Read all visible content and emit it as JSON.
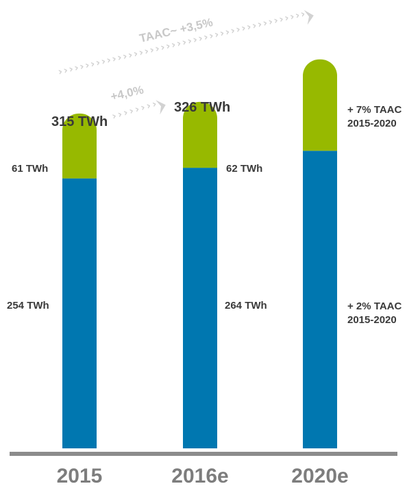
{
  "chart_data": {
    "type": "bar",
    "stacked": true,
    "categories": [
      "2015",
      "2016e",
      "2020e"
    ],
    "series": [
      {
        "values": [
          254,
          264,
          280
        ],
        "color": "#0077b0"
      },
      {
        "values": [
          61,
          62,
          86
        ],
        "color": "#97b900"
      }
    ],
    "segment_labels": [
      [
        "254 TWh",
        "61 TWh"
      ],
      [
        "264 TWh",
        "62 TWh"
      ],
      [
        "+ 2% TAAC\n2015-2020",
        "+ 7% TAAC\n2015-2020"
      ]
    ],
    "totals": [
      "315 TWh",
      "326 TWh",
      ""
    ],
    "growth_annotations": [
      {
        "text": "+4,0%",
        "from": "2015",
        "to": "2016e"
      },
      {
        "text": "TAAC~ +3,5%",
        "from": "2015",
        "to": "2020e"
      }
    ],
    "title": "",
    "xlabel": "",
    "ylabel": "",
    "ylim": [
      0,
      380
    ],
    "grid": false,
    "axis_color": "#8c8c8c",
    "arrow_color": "#d2d2d2"
  }
}
